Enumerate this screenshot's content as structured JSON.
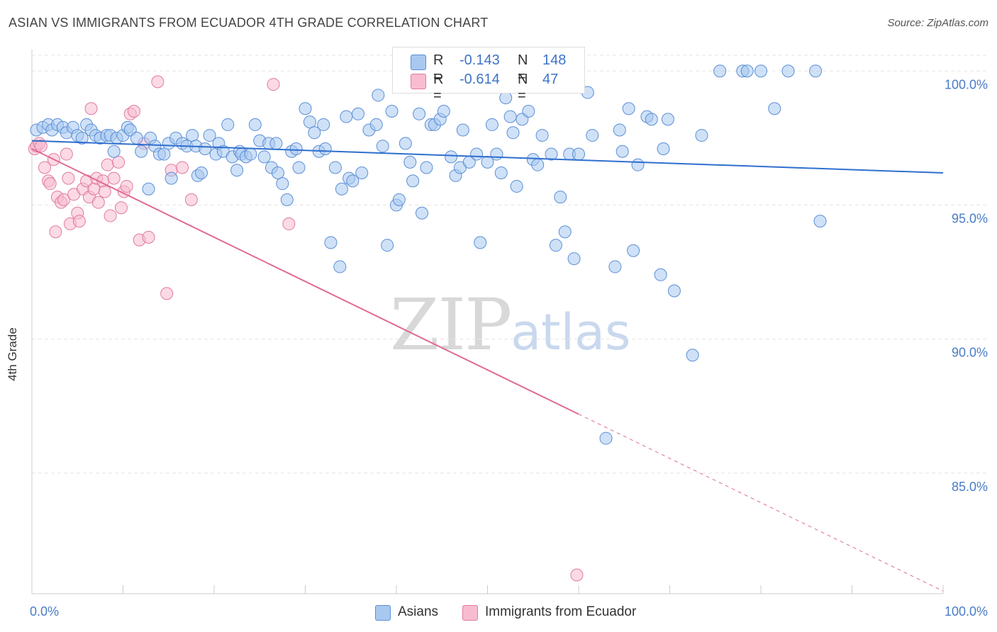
{
  "header": {
    "title": "ASIAN VS IMMIGRANTS FROM ECUADOR 4TH GRADE CORRELATION CHART",
    "source": "Source: ZipAtlas.com"
  },
  "watermark": {
    "zip": "ZIP",
    "atlas": "atlas"
  },
  "legend": {
    "r_label": "R =",
    "n_label": "N =",
    "rows": [
      {
        "r": "-0.143",
        "n": "148",
        "color": "#a8c8f0",
        "border": "#5b8fd6"
      },
      {
        "r": "-0.614",
        "n": "47",
        "color": "#f8bcd0",
        "border": "#e07aa0"
      }
    ]
  },
  "chart_data": {
    "type": "scatter",
    "title": "ASIAN VS IMMIGRANTS FROM ECUADOR 4TH GRADE CORRELATION CHART",
    "xlabel": "",
    "ylabel": "4th Grade",
    "xlim": [
      0,
      100
    ],
    "ylim": [
      80.5,
      100.8
    ],
    "x_tick_labels": [
      "0.0%",
      "100.0%"
    ],
    "y_ticks": [
      85,
      90,
      95,
      100
    ],
    "y_tick_labels": [
      "85.0%",
      "90.0%",
      "95.0%",
      "100.0%"
    ],
    "grid": true,
    "legend_position": "bottom",
    "colors": {
      "asians": "#5b8fd6",
      "asians_fill": "#a8c8f0",
      "ecuador": "#e07aa0",
      "ecuador_fill": "#f8bcd0"
    },
    "series": [
      {
        "name": "Asians",
        "trend": {
          "x": [
            0,
            100
          ],
          "y": [
            97.4,
            96.2
          ]
        },
        "points": [
          [
            0.5,
            97.8
          ],
          [
            1.2,
            97.9
          ],
          [
            1.8,
            98.0
          ],
          [
            2.2,
            97.8
          ],
          [
            2.8,
            98.0
          ],
          [
            3.4,
            97.9
          ],
          [
            3.8,
            97.7
          ],
          [
            4.5,
            97.9
          ],
          [
            5,
            97.6
          ],
          [
            5.5,
            97.5
          ],
          [
            6,
            98.0
          ],
          [
            6.5,
            97.8
          ],
          [
            7,
            97.6
          ],
          [
            7.5,
            97.5
          ],
          [
            8.2,
            97.6
          ],
          [
            8.6,
            97.6
          ],
          [
            9,
            97.0
          ],
          [
            9.3,
            97.5
          ],
          [
            10,
            97.6
          ],
          [
            10.5,
            97.9
          ],
          [
            10.8,
            97.8
          ],
          [
            11.5,
            97.5
          ],
          [
            12,
            97.0
          ],
          [
            12.8,
            95.6
          ],
          [
            13,
            97.5
          ],
          [
            13.5,
            97.2
          ],
          [
            14,
            96.9
          ],
          [
            14.5,
            96.9
          ],
          [
            15,
            97.3
          ],
          [
            15.3,
            96.0
          ],
          [
            15.8,
            97.5
          ],
          [
            16.5,
            97.3
          ],
          [
            17,
            97.2
          ],
          [
            17.6,
            97.6
          ],
          [
            18,
            97.2
          ],
          [
            18.2,
            96.1
          ],
          [
            18.6,
            96.2
          ],
          [
            19,
            97.1
          ],
          [
            19.5,
            97.6
          ],
          [
            20.2,
            96.9
          ],
          [
            20.5,
            97.3
          ],
          [
            21,
            97.0
          ],
          [
            21.5,
            98.0
          ],
          [
            22,
            96.8
          ],
          [
            22.5,
            96.3
          ],
          [
            22.8,
            97.0
          ],
          [
            23,
            96.9
          ],
          [
            23.5,
            96.8
          ],
          [
            24,
            96.9
          ],
          [
            24.5,
            98.0
          ],
          [
            25,
            97.4
          ],
          [
            25.5,
            96.8
          ],
          [
            26,
            97.3
          ],
          [
            26.3,
            96.4
          ],
          [
            26.8,
            97.3
          ],
          [
            27,
            96.2
          ],
          [
            27.5,
            95.8
          ],
          [
            28,
            95.2
          ],
          [
            28.5,
            97.0
          ],
          [
            29,
            97.1
          ],
          [
            29.3,
            96.4
          ],
          [
            30,
            98.6
          ],
          [
            30.5,
            98.1
          ],
          [
            31,
            97.7
          ],
          [
            31.5,
            97.0
          ],
          [
            32,
            98.0
          ],
          [
            32.2,
            97.1
          ],
          [
            32.8,
            93.6
          ],
          [
            33.3,
            96.4
          ],
          [
            33.8,
            92.7
          ],
          [
            34,
            95.6
          ],
          [
            34.5,
            98.3
          ],
          [
            34.8,
            96.0
          ],
          [
            35.2,
            95.9
          ],
          [
            35.8,
            98.4
          ],
          [
            36.2,
            96.2
          ],
          [
            37,
            97.8
          ],
          [
            37.8,
            98.0
          ],
          [
            38,
            99.1
          ],
          [
            38.5,
            97.2
          ],
          [
            39,
            93.5
          ],
          [
            39.5,
            98.5
          ],
          [
            40,
            95.0
          ],
          [
            40.3,
            95.2
          ],
          [
            41,
            97.3
          ],
          [
            41.5,
            96.6
          ],
          [
            41.8,
            95.9
          ],
          [
            42.5,
            98.4
          ],
          [
            42.8,
            94.7
          ],
          [
            43.3,
            96.4
          ],
          [
            43.8,
            98.0
          ],
          [
            44.2,
            98.0
          ],
          [
            44.8,
            98.2
          ],
          [
            45.2,
            98.5
          ],
          [
            46,
            96.8
          ],
          [
            46.5,
            96.1
          ],
          [
            47,
            96.4
          ],
          [
            47.3,
            97.8
          ],
          [
            48,
            96.6
          ],
          [
            48.8,
            96.9
          ],
          [
            49.2,
            93.6
          ],
          [
            50,
            96.6
          ],
          [
            50.5,
            98.0
          ],
          [
            51,
            96.9
          ],
          [
            51.5,
            96.2
          ],
          [
            52,
            99.0
          ],
          [
            52.5,
            98.3
          ],
          [
            52.8,
            97.7
          ],
          [
            53.2,
            95.7
          ],
          [
            53.8,
            98.2
          ],
          [
            54.5,
            98.5
          ],
          [
            55,
            96.7
          ],
          [
            55.5,
            96.5
          ],
          [
            56,
            97.6
          ],
          [
            57,
            96.9
          ],
          [
            57.5,
            93.5
          ],
          [
            58,
            95.3
          ],
          [
            58.5,
            94.0
          ],
          [
            59,
            96.9
          ],
          [
            59.5,
            93.0
          ],
          [
            60,
            96.9
          ],
          [
            61,
            99.2
          ],
          [
            61.5,
            97.6
          ],
          [
            64,
            92.7
          ],
          [
            64.5,
            97.8
          ],
          [
            64.8,
            97.0
          ],
          [
            65.5,
            98.6
          ],
          [
            66,
            93.3
          ],
          [
            66.5,
            96.5
          ],
          [
            67.5,
            98.3
          ],
          [
            68,
            98.2
          ],
          [
            69,
            92.4
          ],
          [
            69.3,
            97.1
          ],
          [
            69.8,
            98.2
          ],
          [
            70.5,
            91.8
          ],
          [
            72.5,
            89.4
          ],
          [
            73.5,
            97.6
          ],
          [
            75.5,
            100.0
          ],
          [
            78,
            100.0
          ],
          [
            78.5,
            100.0
          ],
          [
            80,
            100.0
          ],
          [
            81.5,
            98.6
          ],
          [
            83,
            100.0
          ],
          [
            86,
            100.0
          ],
          [
            86.5,
            94.4
          ],
          [
            63,
            86.3
          ]
        ]
      },
      {
        "name": "Immigrants from Ecuador",
        "trend": {
          "x": [
            0,
            60
          ],
          "y": [
            97.1,
            87.2
          ],
          "dashed_extension": {
            "x": [
              60,
              100
            ],
            "y": [
              87.2,
              80.6
            ]
          }
        },
        "points": [
          [
            0.3,
            97.1
          ],
          [
            0.5,
            97.2
          ],
          [
            0.8,
            97.3
          ],
          [
            1,
            97.2
          ],
          [
            1.4,
            96.4
          ],
          [
            1.8,
            95.9
          ],
          [
            2,
            95.8
          ],
          [
            2.4,
            96.7
          ],
          [
            2.6,
            94.0
          ],
          [
            2.8,
            95.3
          ],
          [
            3.2,
            95.1
          ],
          [
            3.5,
            95.2
          ],
          [
            3.8,
            96.9
          ],
          [
            4,
            96.0
          ],
          [
            4.2,
            94.3
          ],
          [
            4.6,
            95.4
          ],
          [
            5,
            94.7
          ],
          [
            5.2,
            94.4
          ],
          [
            5.6,
            95.6
          ],
          [
            6,
            95.9
          ],
          [
            6.3,
            95.3
          ],
          [
            6.5,
            98.6
          ],
          [
            6.8,
            95.6
          ],
          [
            7.1,
            96.0
          ],
          [
            7.3,
            95.1
          ],
          [
            7.8,
            95.9
          ],
          [
            8,
            95.5
          ],
          [
            8.3,
            96.5
          ],
          [
            8.6,
            94.6
          ],
          [
            9,
            96.0
          ],
          [
            9.5,
            96.6
          ],
          [
            9.8,
            94.9
          ],
          [
            10.1,
            95.5
          ],
          [
            10.4,
            95.7
          ],
          [
            10.8,
            98.4
          ],
          [
            11.2,
            98.5
          ],
          [
            11.8,
            93.7
          ],
          [
            12.3,
            97.3
          ],
          [
            12.8,
            93.8
          ],
          [
            13.8,
            99.6
          ],
          [
            14.8,
            91.7
          ],
          [
            15.3,
            96.3
          ],
          [
            16.5,
            96.4
          ],
          [
            17.5,
            95.2
          ],
          [
            26.5,
            99.5
          ],
          [
            28.2,
            94.3
          ],
          [
            59.8,
            81.2
          ]
        ]
      }
    ]
  },
  "bottom_legend": {
    "items": [
      {
        "label": "Asians"
      },
      {
        "label": "Immigrants from Ecuador"
      }
    ]
  }
}
